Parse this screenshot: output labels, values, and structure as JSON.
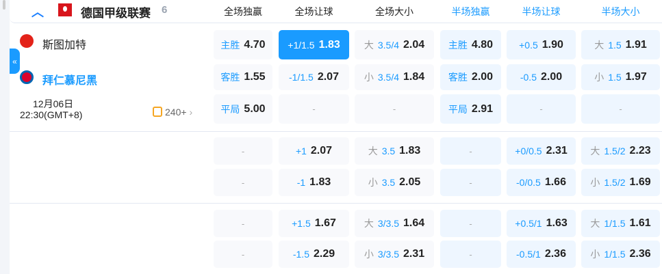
{
  "league": {
    "name": "德国甲级联赛",
    "count": "6"
  },
  "columns": [
    "全场独赢",
    "全场让球",
    "全场大小",
    "半场独赢",
    "半场让球",
    "半场大小"
  ],
  "match": {
    "home": "斯图加特",
    "away": "拜仁慕尼黑",
    "date": "12月06日",
    "time": "22:30(GMT+8)",
    "more": "240+"
  },
  "rows": [
    [
      {
        "lb": "主胜",
        "od": "4.70"
      },
      {
        "lb": "+1/1.5",
        "od": "1.83",
        "sel": true
      },
      {
        "pf": "大",
        "lb": "3.5/4",
        "od": "2.04"
      },
      {
        "lb": "主胜",
        "od": "4.80"
      },
      {
        "lb": "+0.5",
        "od": "1.90"
      },
      {
        "pf": "大",
        "lb": "1.5",
        "od": "1.91"
      }
    ],
    [
      {
        "lb": "客胜",
        "od": "1.55"
      },
      {
        "lb": "-1/1.5",
        "od": "2.07"
      },
      {
        "pf": "小",
        "lb": "3.5/4",
        "od": "1.84"
      },
      {
        "lb": "客胜",
        "od": "2.00"
      },
      {
        "lb": "-0.5",
        "od": "2.00"
      },
      {
        "pf": "小",
        "lb": "1.5",
        "od": "1.97"
      }
    ],
    [
      {
        "lb": "平局",
        "od": "5.00"
      },
      {
        "dash": "-"
      },
      {
        "dash": "-"
      },
      {
        "lb": "平局",
        "od": "2.91"
      },
      {
        "dash": "-"
      },
      {
        "dash": "-"
      }
    ],
    [
      {
        "dash": "-"
      },
      {
        "lb": "+1",
        "od": "2.07"
      },
      {
        "pf": "大",
        "lb": "3.5",
        "od": "1.83"
      },
      {
        "dash": "-"
      },
      {
        "lb": "+0/0.5",
        "od": "2.31"
      },
      {
        "pf": "大",
        "lb": "1.5/2",
        "od": "2.23"
      }
    ],
    [
      {
        "dash": "-"
      },
      {
        "lb": "-1",
        "od": "1.83"
      },
      {
        "pf": "小",
        "lb": "3.5",
        "od": "2.05"
      },
      {
        "dash": "-"
      },
      {
        "lb": "-0/0.5",
        "od": "1.66"
      },
      {
        "pf": "小",
        "lb": "1.5/2",
        "od": "1.69"
      }
    ],
    [
      {
        "dash": "-"
      },
      {
        "lb": "+1.5",
        "od": "1.67"
      },
      {
        "pf": "大",
        "lb": "3/3.5",
        "od": "1.64"
      },
      {
        "dash": "-"
      },
      {
        "lb": "+0.5/1",
        "od": "1.63"
      },
      {
        "pf": "大",
        "lb": "1/1.5",
        "od": "1.61"
      }
    ],
    [
      {
        "dash": "-"
      },
      {
        "lb": "-1.5",
        "od": "2.29"
      },
      {
        "pf": "小",
        "lb": "3/3.5",
        "od": "2.31"
      },
      {
        "dash": "-"
      },
      {
        "lb": "-0.5/1",
        "od": "2.36"
      },
      {
        "pf": "小",
        "lb": "1/1.5",
        "od": "2.36"
      }
    ]
  ],
  "colors": {
    "accent": "#1a9bff",
    "selected": "#1a9bff"
  }
}
